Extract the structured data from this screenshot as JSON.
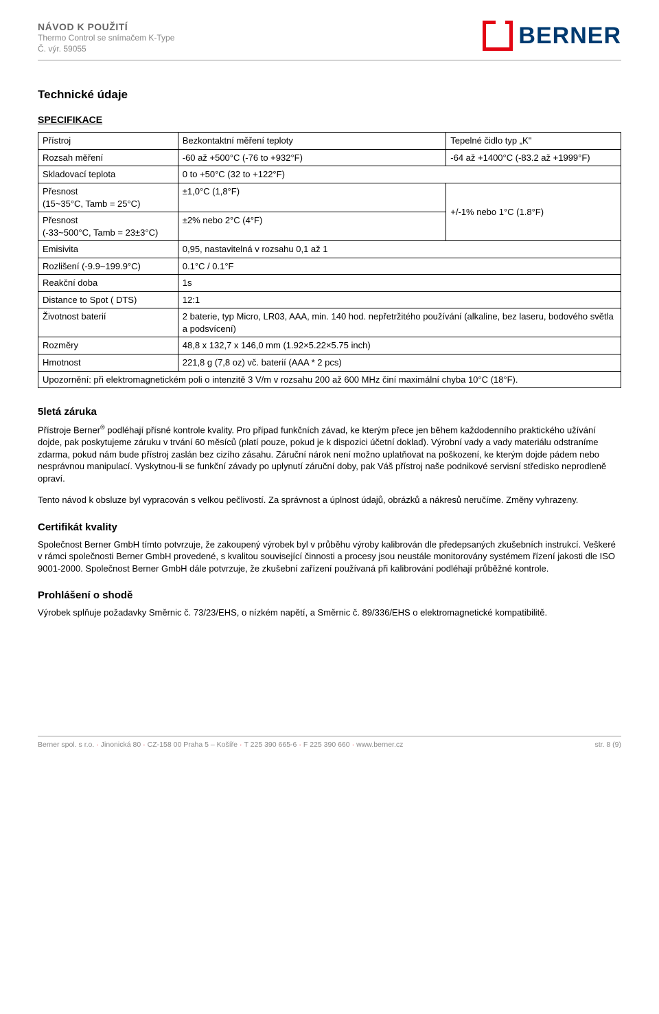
{
  "header": {
    "title": "NÁVOD K POUŽITÍ",
    "subtitle": "Thermo Control se snímačem K-Type",
    "line3_label": "Č. výr.",
    "line3_value": "59055",
    "logo_text": "BERNER",
    "logo_red": "#e30613",
    "logo_blue": "#003a70"
  },
  "section_title": "Technické údaje",
  "spec_heading": "SPECIFIKACE",
  "table": {
    "rows": [
      {
        "label": "Přístroj",
        "col2": "Bezkontaktní měření teploty",
        "col3": "Tepelné čidlo typ „K\""
      },
      {
        "label": "Rozsah měření",
        "col2": "-60 až +500°C (-76 to +932°F)",
        "col3": "-64 až +1400°C (-83.2 až +1999°F)"
      },
      {
        "label": "Skladovací teplota",
        "col2": "0 to +50°C (32 to +122°F)",
        "col3": ""
      },
      {
        "label": "Přesnost\n(15~35°C, Tamb = 25°C)",
        "col2": "±1,0°C (1,8°F)",
        "col3": "+/-1% nebo 1°C (1.8°F)"
      },
      {
        "label": "Přesnost\n(-33~500°C, Tamb = 23±3°C)",
        "col2": "±2% nebo 2°C (4°F)",
        "col3": ""
      },
      {
        "label": "Emisivita",
        "col2": "0,95, nastavitelná v rozsahu 0,1 až 1",
        "col3": ""
      },
      {
        "label": "Rozlišení (-9.9~199.9°C)",
        "col2": "0.1°C / 0.1°F",
        "col3": ""
      },
      {
        "label": "Reakční doba",
        "col2": "1s",
        "col3": ""
      },
      {
        "label": "Distance to Spot ( DTS)",
        "col2": "12:1",
        "col3": ""
      },
      {
        "label": "Životnost baterií",
        "col2": "2 baterie, typ Micro, LR03, AAA, min. 140 hod. nepřetržitého používání (alkaline, bez laseru, bodového světla a podsvícení)",
        "col3": ""
      },
      {
        "label": "Rozměry",
        "col2": "48,8 x 132,7 x 146,0 mm (1.92×5.22×5.75 inch)",
        "col3": ""
      },
      {
        "label": "Hmotnost",
        "col2": "221,8 g (7,8 oz) vč. baterií (AAA * 2 pcs)",
        "col3": ""
      }
    ],
    "footer_note": "Upozornění: při elektromagnetickém poli o intenzitě 3 V/m v rozsahu 200 až 600 MHz činí maximální chyba 10°C (18°F)."
  },
  "warranty": {
    "heading": "5letá záruka",
    "p1_a": "Přístroje Berner",
    "p1_b": " podléhají přísné kontrole kvality. Pro případ funkčních závad, ke kterým přece jen během každodenního praktického užívání dojde, pak poskytujeme záruku v trvání 60 měsíců (platí pouze, pokud je k dispozici účetní doklad). Výrobní vady a vady materiálu odstraníme zdarma, pokud nám bude přístroj zaslán bez cizího zásahu. Záruční nárok není možno uplatňovat na poškození, ke kterým dojde pádem nebo nesprávnou manipulací. Vyskytnou-li se funkční závady po uplynutí záruční doby, pak Váš přístroj naše podnikové servisní středisko neprodleně opraví.",
    "p2": "Tento návod k obsluze byl vypracován s velkou pečlivostí. Za správnost a úplnost údajů, obrázků a nákresů neručíme. Změny vyhrazeny."
  },
  "quality": {
    "heading": "Certifikát kvality",
    "p1": "Společnost Berner GmbH tímto potvrzuje, že zakoupený výrobek byl v průběhu výroby kalibrován dle předepsaných zkušebních instrukcí. Veškeré v rámci společnosti Berner GmbH provedené, s kvalitou související činnosti a procesy jsou neustále monitorovány systémem řízení jakosti dle ISO 9001-2000. Společnost Berner GmbH dále potvrzuje, že zkušební zařízení používaná při kalibrování podléhají průběžné kontrole."
  },
  "declaration": {
    "heading": "Prohlášení o shodě",
    "p1": "Výrobek splňuje požadavky Směrnic č. 73/23/EHS, o nízkém napětí, a Směrnic č. 89/336/EHS o elektromagnetické kompatibilitě."
  },
  "footer": {
    "company": "Berner spol. s r.o.",
    "address": "Jinonická 80",
    "postal": "CZ-158 00 Praha 5 – Košíře",
    "phone": "T 225 390   665-6",
    "fax": "F 225 390 660",
    "web": "www.berner.cz",
    "page": "str. 8 (9)"
  }
}
